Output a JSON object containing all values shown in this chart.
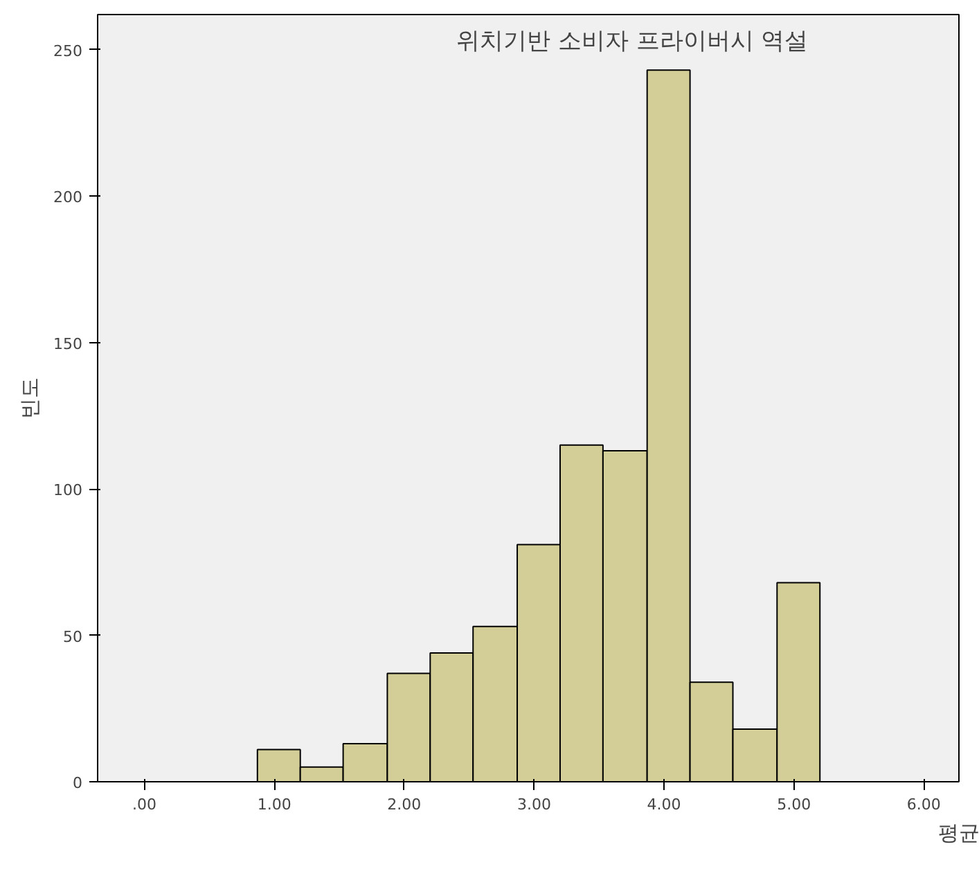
{
  "chart_data": {
    "type": "histogram",
    "title": "위치기반 소비자 프라이버시 역설",
    "xlabel": "평균",
    "ylabel": "빈도",
    "bins": [
      0.87,
      1.2,
      1.53,
      1.87,
      2.2,
      2.53,
      2.87,
      3.2,
      3.53,
      3.87,
      4.2,
      4.53,
      4.87,
      5.2
    ],
    "values": [
      11,
      5,
      13,
      37,
      44,
      53,
      81,
      115,
      113,
      243,
      34,
      18,
      68
    ],
    "color": "#d3ce97",
    "xlim": [
      -0.36,
      6.27
    ],
    "ylim": [
      0,
      262
    ],
    "xticks": [
      {
        "value": 0,
        "label": ".00"
      },
      {
        "value": 1,
        "label": "1.00"
      },
      {
        "value": 2,
        "label": "2.00"
      },
      {
        "value": 3,
        "label": "3.00"
      },
      {
        "value": 4,
        "label": "4.00"
      },
      {
        "value": 5,
        "label": "5.00"
      },
      {
        "value": 6,
        "label": "6.00"
      }
    ],
    "yticks": [
      0,
      50,
      100,
      150,
      200,
      250
    ],
    "grid": false
  }
}
